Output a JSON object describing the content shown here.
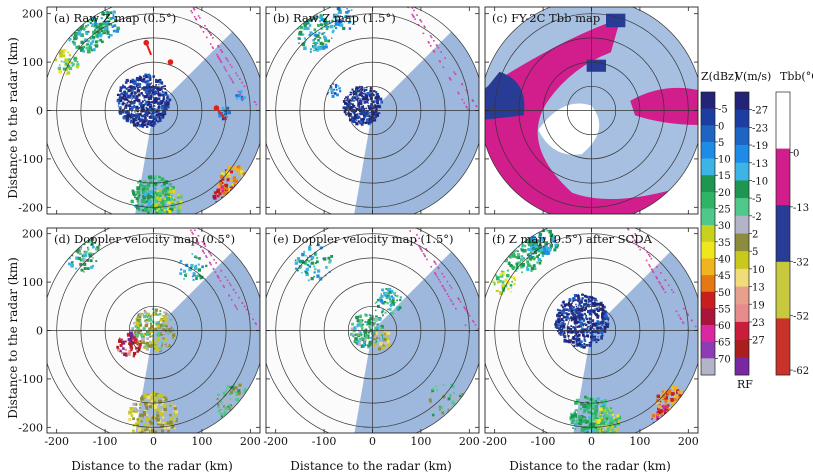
{
  "figure": {
    "ylabel": "Distance to the radar (km)",
    "xlabel": "Distance to the radar (km)"
  },
  "chart_data": [
    {
      "type": "heatmap",
      "title": "(a) Raw Z map (0.5°)",
      "xlim": [
        -220,
        220
      ],
      "ylim": [
        -220,
        220
      ],
      "xticks": [
        "-200",
        "-100",
        "0",
        "100",
        "200"
      ],
      "yticks": [
        "-200",
        "-100",
        "0",
        "100",
        "200"
      ],
      "range_rings_km": [
        50,
        100,
        150,
        200
      ],
      "annotations": "red arrows marking clutter"
    },
    {
      "type": "heatmap",
      "title": "(b) Raw Z map (1.5°)",
      "xlim": [
        -220,
        220
      ],
      "ylim": [
        -220,
        220
      ],
      "range_rings_km": [
        50,
        100,
        150,
        200
      ]
    },
    {
      "type": "heatmap",
      "title": "(c) FY-2C Tbb map",
      "xlim": [
        -220,
        220
      ],
      "ylim": [
        -220,
        220
      ],
      "range_rings_km": [
        50,
        100,
        150,
        200
      ]
    },
    {
      "type": "heatmap",
      "title": "(d) Doppler velocity map (0.5°)",
      "xlim": [
        -220,
        220
      ],
      "ylim": [
        -220,
        220
      ],
      "range_rings_km": [
        50,
        100,
        150,
        200
      ]
    },
    {
      "type": "heatmap",
      "title": "(e) Doppler velocity map (1.5°)",
      "xlim": [
        -220,
        220
      ],
      "ylim": [
        -220,
        220
      ],
      "range_rings_km": [
        50,
        100,
        150,
        200
      ]
    },
    {
      "type": "heatmap",
      "title": "(f) Z map (0.5°) after SCDA",
      "xlim": [
        -220,
        220
      ],
      "ylim": [
        -220,
        220
      ],
      "range_rings_km": [
        50,
        100,
        150,
        200
      ]
    }
  ],
  "colorbars": [
    {
      "title": "Z(dBz)",
      "labels": [
        "-5",
        "0",
        "5",
        "10",
        "15",
        "20",
        "25",
        "30",
        "35",
        "40",
        "45",
        "50",
        "55",
        "60",
        "65",
        "70"
      ],
      "colors": [
        "#232378",
        "#1e3da0",
        "#1e64c3",
        "#1e8ce6",
        "#3cb4e6",
        "#1e9650",
        "#2eb464",
        "#50c88c",
        "#c8d21e",
        "#f0e61e",
        "#f0b41e",
        "#e67814",
        "#c81e1e",
        "#aa143c",
        "#dc28a0",
        "#8c3cb4",
        "#b4b4c8"
      ]
    },
    {
      "title": "V(m/s)",
      "labels": [
        "-27",
        "-23",
        "-19",
        "-13",
        "-10",
        "-5",
        "-2",
        "2",
        "5",
        "10",
        "13",
        "19",
        "23",
        "27"
      ],
      "colors": [
        "#232378",
        "#1e3da0",
        "#1e64c3",
        "#1e8ce6",
        "#3cb4e6",
        "#1e9650",
        "#50c88c",
        "#b4b4c8",
        "#8c8c3c",
        "#c8c81e",
        "#f0dc78",
        "#e6a08c",
        "#e68c8c",
        "#c81e3c",
        "#aa1e1e",
        "#7828a0"
      ],
      "footer": "RF"
    },
    {
      "title": "Tbb(°C)",
      "labels": [
        "0",
        "-13",
        "-32",
        "-52",
        "-62"
      ],
      "colors": [
        "#ffffff",
        "#d21e8c",
        "#283c96",
        "#c8c83c",
        "#c83228"
      ]
    }
  ]
}
